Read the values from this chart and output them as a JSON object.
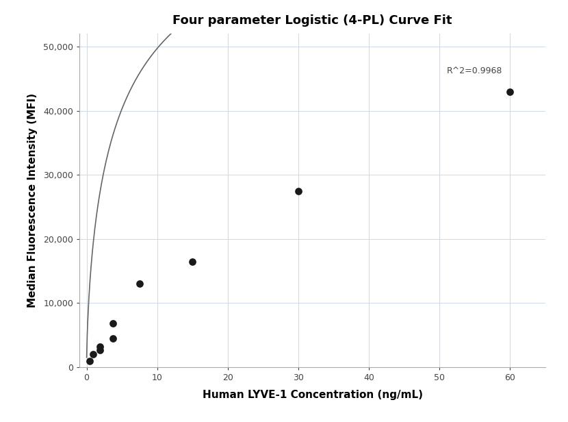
{
  "title": "Four parameter Logistic (4-PL) Curve Fit",
  "xlabel": "Human LYVE-1 Concentration (ng/mL)",
  "ylabel": "Median Fluorescence Intensity (MFI)",
  "r_squared": "R^2=0.9968",
  "scatter_x": [
    0.469,
    0.938,
    1.875,
    1.875,
    3.75,
    3.75,
    7.5,
    15,
    30,
    60
  ],
  "scatter_y": [
    900,
    2000,
    2700,
    3200,
    4500,
    6800,
    13000,
    16500,
    27500,
    43000
  ],
  "scatter_color": "#1a1a1a",
  "scatter_size": 60,
  "line_color": "#666666",
  "background_color": "#ffffff",
  "grid_color": "#ccd9ea",
  "xlim": [
    -1,
    65
  ],
  "ylim": [
    0,
    52000
  ],
  "yticks": [
    0,
    10000,
    20000,
    30000,
    40000,
    50000
  ],
  "xticks": [
    0,
    10,
    20,
    30,
    40,
    50,
    60
  ],
  "title_fontsize": 13,
  "label_fontsize": 11,
  "tick_fontsize": 9,
  "annot_fontsize": 9,
  "r2_x": 51,
  "r2_y": 45500,
  "figsize": [
    8.3,
    6.16
  ],
  "dpi": 100
}
